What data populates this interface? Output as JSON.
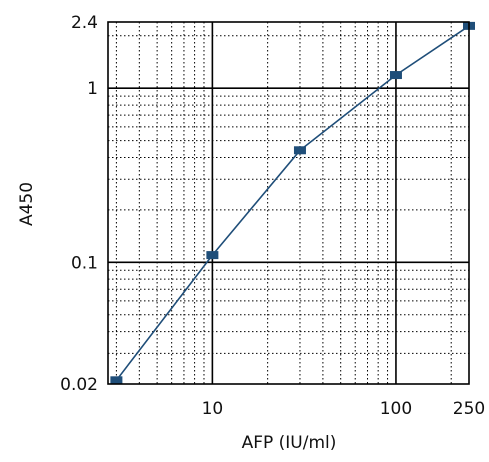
{
  "chart_data": {
    "type": "line",
    "title": "",
    "xlabel": "AFP (IU/ml)",
    "ylabel": "A450",
    "x_scale": "log",
    "y_scale": "log",
    "xlim": [
      2.7,
      250
    ],
    "ylim": [
      0.02,
      2.4
    ],
    "grid": true,
    "x_ticks": [
      {
        "value": 10,
        "label": "10"
      },
      {
        "value": 100,
        "label": "100"
      },
      {
        "value": 250,
        "label": "250"
      }
    ],
    "y_ticks": [
      {
        "value": 0.02,
        "label": "0.02"
      },
      {
        "value": 0.1,
        "label": "0.1"
      },
      {
        "value": 1,
        "label": "1"
      },
      {
        "value": 2.4,
        "label": "2.4"
      }
    ],
    "series": [
      {
        "name": "",
        "color": "#1f4e79",
        "x": [
          3,
          10,
          30,
          100,
          250
        ],
        "y": [
          0.021,
          0.11,
          0.44,
          1.19,
          2.28
        ]
      }
    ]
  }
}
